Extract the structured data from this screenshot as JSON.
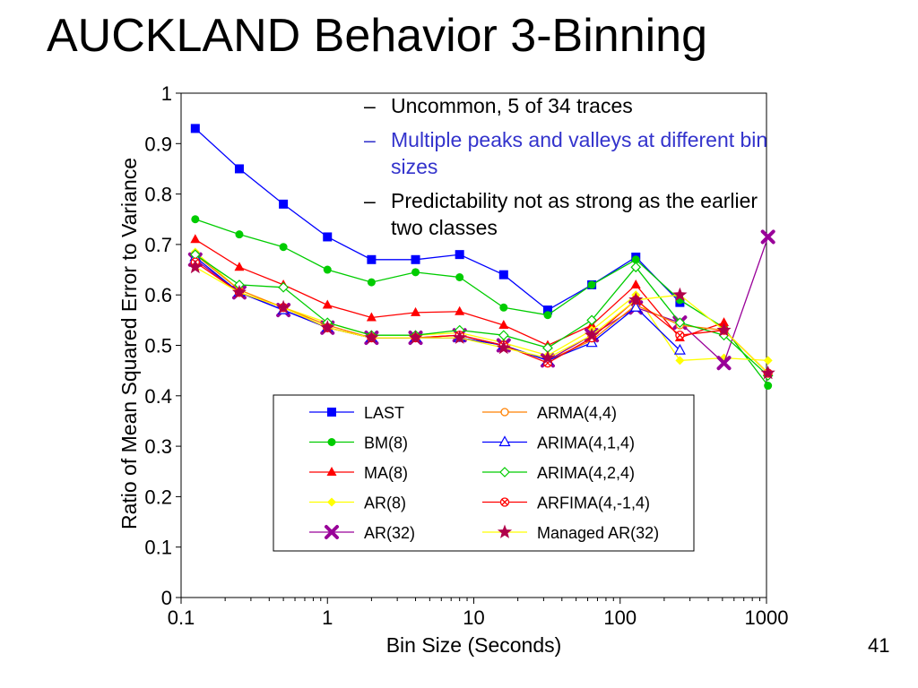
{
  "slide": {
    "title": "AUCKLAND Behavior 3-Binning",
    "page_number": "41",
    "bullets": [
      {
        "text": "Uncommon, 5 of 34 traces",
        "color": "#000000"
      },
      {
        "text": "Multiple peaks and valleys at different bin sizes",
        "color": "#3333cc"
      },
      {
        "text": "Predictability not as strong as the earlier two classes",
        "color": "#000000"
      }
    ],
    "bullet_marker": "–"
  },
  "chart_data": {
    "type": "line",
    "xlabel": "Bin Size (Seconds)",
    "ylabel": "Ratio of Mean Squared Error to Variance",
    "xscale": "log",
    "xlim": [
      0.1,
      1000
    ],
    "ylim": [
      0,
      1
    ],
    "xticks": [
      "0.1",
      "1",
      "10",
      "100",
      "1000"
    ],
    "yticks": [
      "0",
      "0.1",
      "0.2",
      "0.3",
      "0.4",
      "0.5",
      "0.6",
      "0.7",
      "0.8",
      "0.9",
      "1"
    ],
    "x": [
      0.125,
      0.25,
      0.5,
      1,
      2,
      4,
      8,
      16,
      32,
      64,
      128,
      256,
      512,
      1024
    ],
    "legend_position": "lower-center",
    "series": [
      {
        "name": "LAST",
        "color": "#0000ff",
        "marker": "square",
        "values": [
          0.93,
          0.85,
          0.78,
          0.715,
          0.67,
          0.67,
          0.68,
          0.64,
          0.57,
          0.62,
          0.675,
          0.585,
          null,
          null
        ]
      },
      {
        "name": "BM(8)",
        "color": "#00cc00",
        "marker": "circle",
        "values": [
          0.75,
          0.72,
          0.695,
          0.65,
          0.625,
          0.645,
          0.635,
          0.575,
          0.56,
          0.62,
          0.67,
          0.59,
          0.535,
          0.42
        ]
      },
      {
        "name": "MA(8)",
        "color": "#ff0000",
        "marker": "triangle",
        "values": [
          0.71,
          0.655,
          0.62,
          0.58,
          0.555,
          0.565,
          0.567,
          0.54,
          0.5,
          0.54,
          0.62,
          0.515,
          0.545,
          null
        ]
      },
      {
        "name": "AR(8)",
        "color": "#ffff00",
        "marker": "diamond",
        "values": [
          0.685,
          0.61,
          0.575,
          0.545,
          0.52,
          0.52,
          0.525,
          0.505,
          0.48,
          0.53,
          0.6,
          0.47,
          0.475,
          0.47
        ]
      },
      {
        "name": "AR(32)",
        "color": "#990099",
        "marker": "x",
        "values": [
          0.67,
          0.605,
          0.57,
          0.535,
          0.515,
          0.515,
          0.52,
          0.5,
          0.47,
          0.52,
          0.575,
          0.545,
          0.465,
          0.715
        ]
      },
      {
        "name": "ARMA(4,4)",
        "color": "#ff8000",
        "marker": "open-circle",
        "values": [
          0.68,
          0.61,
          0.575,
          0.54,
          0.515,
          0.515,
          0.515,
          0.5,
          0.47,
          0.51,
          0.58,
          0.54,
          0.53,
          0.445
        ]
      },
      {
        "name": "ARIMA(4,1,4)",
        "color": "#0000ff",
        "marker": "open-triangle",
        "values": [
          0.675,
          0.605,
          0.57,
          0.535,
          0.515,
          0.515,
          0.515,
          0.5,
          0.47,
          0.505,
          0.575,
          0.49,
          null,
          null
        ]
      },
      {
        "name": "ARIMA(4,2,4)",
        "color": "#00cc00",
        "marker": "open-diamond",
        "values": [
          0.68,
          0.62,
          0.615,
          0.545,
          0.52,
          0.52,
          0.53,
          0.52,
          0.495,
          0.55,
          0.655,
          0.545,
          0.52,
          0.44
        ]
      },
      {
        "name": "ARFIMA(4,-1,4)",
        "color": "#ff0000",
        "marker": "circle-x",
        "values": [
          0.665,
          0.605,
          0.575,
          0.535,
          0.515,
          0.515,
          0.52,
          0.5,
          0.465,
          0.515,
          0.59,
          0.52,
          0.53,
          0.445
        ]
      },
      {
        "name": "Managed AR(32)",
        "color": "#ffff00",
        "marker": "star",
        "values": [
          0.655,
          0.605,
          0.575,
          0.535,
          0.515,
          0.515,
          0.515,
          0.495,
          0.475,
          0.52,
          0.59,
          0.6,
          0.53,
          0.445
        ]
      }
    ]
  }
}
